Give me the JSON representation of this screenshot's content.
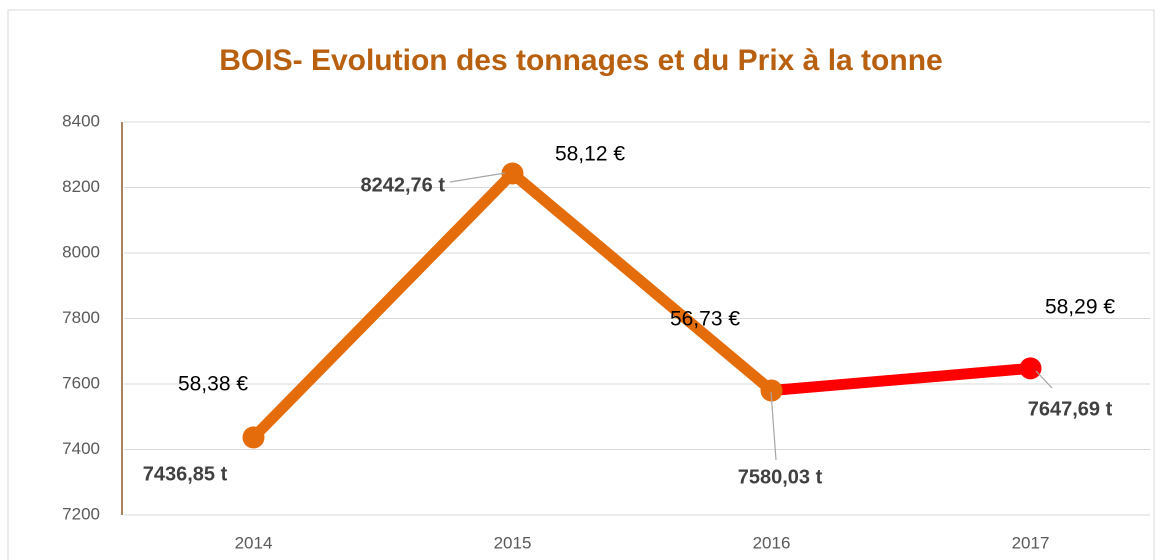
{
  "chart_data": {
    "type": "line",
    "title": "BOIS- Evolution des tonnages et du Prix à la tonne",
    "categories": [
      "2014",
      "2015",
      "2016",
      "2017"
    ],
    "values": [
      7436.85,
      8242.76,
      7580.03,
      7647.69
    ],
    "value_labels": [
      "7436,85 t",
      "8242,76 t",
      "7580,03 t",
      "7647,69 t"
    ],
    "price_labels": [
      "58,38 €",
      "58,12 €",
      "56,73 €",
      "58,29 €"
    ],
    "point_colors": [
      "#e46c0a",
      "#e46c0a",
      "#e46c0a",
      "#ff0000"
    ],
    "segment_colors": [
      "#e46c0a",
      "#e46c0a",
      "#ff0000"
    ],
    "ylim": [
      7200,
      8400
    ],
    "yticks": [
      7200,
      7400,
      7600,
      7800,
      8000,
      8200,
      8400
    ],
    "grid": true
  }
}
